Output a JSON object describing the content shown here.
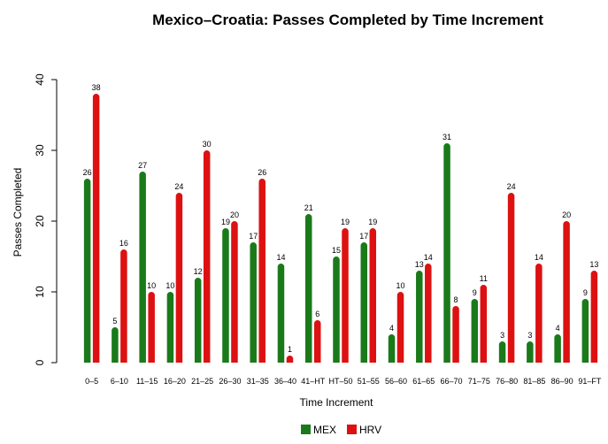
{
  "chart_data": {
    "type": "bar",
    "title": "Mexico–Croatia: Passes Completed by Time Increment",
    "xlabel": "Time Increment",
    "ylabel": "Passes Completed",
    "ylim": [
      0,
      40
    ],
    "yticks": [
      0,
      10,
      20,
      30,
      40
    ],
    "grid": false,
    "legend_position": "bottom",
    "categories": [
      "0–5",
      "6–10",
      "11–15",
      "16–20",
      "21–25",
      "26–30",
      "31–35",
      "36–40",
      "41–HT",
      "HT–50",
      "51–55",
      "56–60",
      "61–65",
      "66–70",
      "71–75",
      "76–80",
      "81–85",
      "86–90",
      "91–FT"
    ],
    "series": [
      {
        "name": "MEX",
        "color": "#1a7a1a",
        "values": [
          26,
          5,
          27,
          10,
          12,
          19,
          17,
          14,
          21,
          15,
          17,
          4,
          13,
          31,
          9,
          3,
          3,
          4,
          9
        ]
      },
      {
        "name": "HRV",
        "color": "#dd1111",
        "values": [
          38,
          16,
          10,
          24,
          30,
          20,
          26,
          1,
          6,
          19,
          19,
          10,
          14,
          8,
          11,
          24,
          14,
          20,
          13
        ]
      }
    ]
  }
}
